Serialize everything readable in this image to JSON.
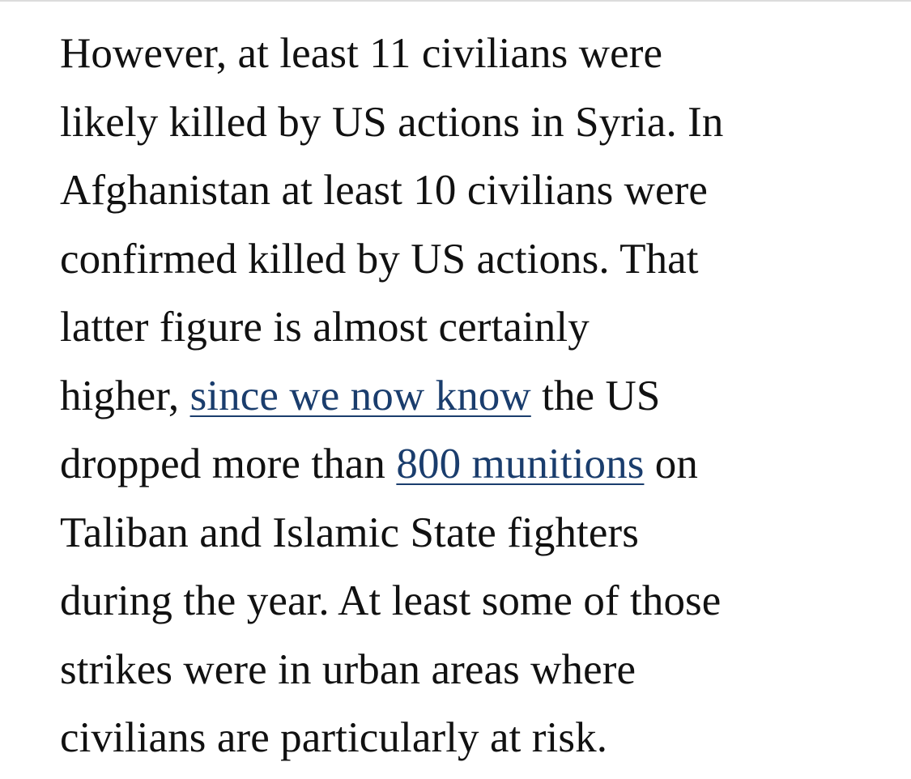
{
  "article": {
    "lines": [
      "However,  at least 11 civilians were",
      "likely killed by US actions in Syria. In",
      "Afghanistan at least 10 civilians were",
      "confirmed killed by US actions. That",
      "latter figure is almost certainly"
    ],
    "line6_prefix": "higher, ",
    "link1_text": "since we now know",
    "line6_suffix": " the US",
    "line7_prefix": "dropped more than ",
    "link2_text": "800 munitions",
    "line7_suffix": " on",
    "lines_tail": [
      "Taliban and Islamic State fighters",
      "during the year. At least some of those",
      "strikes were in urban areas where",
      "civilians are particularly at risk."
    ]
  },
  "colors": {
    "text": "#111111",
    "link": "#1a3d6d",
    "background": "#ffffff",
    "top_rule": "#dcdcdc"
  }
}
